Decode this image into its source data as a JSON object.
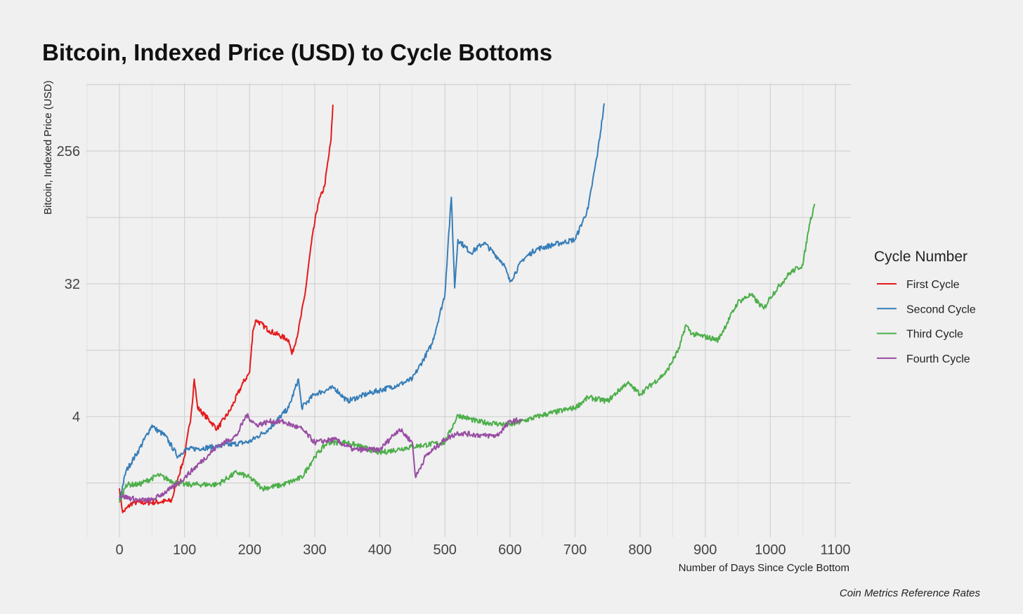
{
  "chart_data": {
    "type": "line",
    "title": "Bitcoin, Indexed Price (USD) to Cycle Bottoms",
    "xlabel": "Number of Days Since Cycle Bottom",
    "ylabel": "Bitcoin, Indexed Price (USD)",
    "caption": "Coin Metrics Reference Rates",
    "y_scale": "log2",
    "xlim": [
      -50,
      1130
    ],
    "ylim": [
      0.6,
      740
    ],
    "x_ticks": [
      0,
      100,
      200,
      300,
      400,
      500,
      600,
      700,
      800,
      900,
      1000,
      1100
    ],
    "x_tick_labels": [
      "0",
      "100",
      "200",
      "300",
      "400",
      "500",
      "600",
      "700",
      "800",
      "900",
      "1000",
      "1100"
    ],
    "y_ticks": [
      4,
      32,
      256
    ],
    "y_tick_labels": [
      "4",
      "32",
      "256"
    ],
    "grid": true,
    "legend": {
      "title": "Cycle Number",
      "placement": "right"
    },
    "series": [
      {
        "name": "First Cycle",
        "color": "#e41a1c",
        "x": [
          0,
          5,
          20,
          50,
          80,
          90,
          100,
          110,
          115,
          120,
          140,
          150,
          170,
          190,
          200,
          205,
          210,
          230,
          260,
          265,
          275,
          285,
          295,
          305,
          315,
          325,
          328
        ],
        "y": [
          1.3,
          0.89,
          1.04,
          1.04,
          1.07,
          1.54,
          2.14,
          4.1,
          7.2,
          4.6,
          3.7,
          3.3,
          4.4,
          6.8,
          8.0,
          15.4,
          18.2,
          15.4,
          13.3,
          10.6,
          15.4,
          27,
          61,
          112,
          147,
          304,
          530
        ]
      },
      {
        "name": "Second Cycle",
        "color": "#377eb8",
        "x": [
          0,
          10,
          30,
          50,
          55,
          70,
          90,
          100,
          150,
          200,
          230,
          260,
          275,
          280,
          300,
          330,
          350,
          380,
          430,
          450,
          480,
          500,
          505,
          510,
          515,
          520,
          540,
          560,
          590,
          600,
          620,
          640,
          680,
          700,
          720,
          735,
          745
        ],
        "y": [
          1.08,
          1.7,
          2.38,
          3.5,
          3.3,
          2.97,
          2.14,
          2.38,
          2.5,
          2.7,
          3.3,
          4.6,
          7.2,
          4.6,
          5.7,
          6.3,
          5.1,
          5.7,
          6.6,
          7.2,
          12.4,
          27,
          61,
          124,
          30,
          64,
          52,
          61,
          44,
          33,
          47,
          55,
          61,
          64,
          104,
          256,
          540
        ]
      },
      {
        "name": "Third Cycle",
        "color": "#4daf4a",
        "x": [
          0,
          10,
          30,
          60,
          80,
          100,
          150,
          180,
          200,
          220,
          250,
          280,
          300,
          320,
          350,
          400,
          450,
          500,
          520,
          550,
          600,
          650,
          700,
          720,
          750,
          780,
          800,
          840,
          860,
          870,
          880,
          920,
          950,
          970,
          990,
          1000,
          1030,
          1050,
          1060,
          1068
        ],
        "y": [
          1.04,
          1.38,
          1.38,
          1.6,
          1.46,
          1.38,
          1.38,
          1.67,
          1.54,
          1.3,
          1.37,
          1.54,
          2.14,
          2.67,
          2.67,
          2.27,
          2.5,
          2.67,
          4.1,
          3.7,
          3.5,
          4.1,
          4.6,
          5.4,
          5.1,
          6.8,
          5.7,
          8,
          11.6,
          16.8,
          14.6,
          13.3,
          24,
          27,
          21.6,
          26,
          38,
          43,
          81,
          112
        ]
      },
      {
        "name": "Fourth Cycle",
        "color": "#984ea3",
        "x": [
          0,
          30,
          50,
          80,
          100,
          150,
          180,
          195,
          210,
          230,
          250,
          280,
          300,
          330,
          360,
          400,
          420,
          430,
          450,
          455,
          470,
          500,
          520,
          560,
          580,
          600,
          618
        ],
        "y": [
          1.16,
          1.08,
          1.08,
          1.3,
          1.54,
          2.5,
          2.97,
          4.1,
          3.5,
          3.7,
          3.7,
          3.3,
          2.67,
          2.8,
          2.38,
          2.38,
          2.97,
          3.3,
          2.67,
          1.54,
          2.14,
          2.8,
          3.1,
          2.97,
          2.97,
          3.7,
          3.8
        ]
      }
    ]
  }
}
